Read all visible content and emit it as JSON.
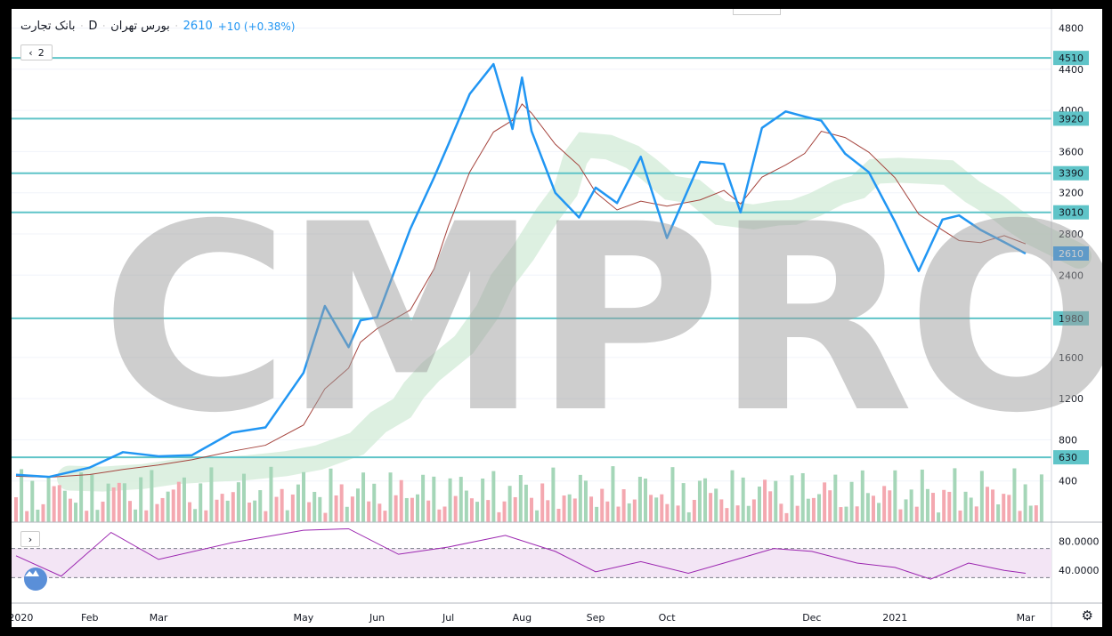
{
  "legend": {
    "symbol": "بانک تجارت",
    "interval": "D",
    "exchange": "بورس تهران",
    "price": "2610",
    "change": "+10 (+0.38%)",
    "collapse_count": "2"
  },
  "watermark": "CMPRO",
  "colors": {
    "price_line": "#2196f3",
    "hline": "#5fc4c8",
    "kijun": "#a5443d",
    "rsi_line": "#9c27b0",
    "rsi_band": "#f3e5f5",
    "vol_up": "#a5d6b8",
    "vol_down": "#f4a8b0",
    "cloud_up": "#cfe9d4",
    "cloud_down": "#f9c9ce"
  },
  "price_axis": [
    "4800",
    "4400",
    "4000",
    "3600",
    "3200",
    "2800",
    "2400",
    "1600",
    "1200",
    "800",
    "400"
  ],
  "rsi_axis": [
    "80.0000",
    "40.0000"
  ],
  "time_axis": [
    "2020",
    "Feb",
    "Mar",
    "May",
    "Jun",
    "Jul",
    "Aug",
    "Sep",
    "Oct",
    "Dec",
    "2021",
    "Mar"
  ],
  "level_labels": [
    "4510",
    "3920",
    "3390",
    "3010",
    "2610",
    "1980",
    "630"
  ],
  "icons": {
    "collapse": "chevron-icon",
    "expand": "chevron-right-icon",
    "settings": "gear-icon",
    "logo": "tradingview-logo-icon"
  },
  "chart_data": {
    "type": "line",
    "title": "",
    "series": [
      {
        "x": [
          "2020-01-01",
          "2020-01-15",
          "2020-02-01",
          "2020-02-15",
          "2020-03-01",
          "2020-03-15",
          "2020-04-01",
          "2020-04-15",
          "2020-05-01",
          "2020-05-10",
          "2020-05-20",
          "2020-05-25",
          "2020-06-01",
          "2020-06-15",
          "2020-06-25",
          "2020-07-01",
          "2020-07-10",
          "2020-07-20",
          "2020-07-28",
          "2020-08-01",
          "2020-08-05",
          "2020-08-15",
          "2020-08-25",
          "2020-09-01",
          "2020-09-10",
          "2020-09-20",
          "2020-10-01",
          "2020-10-15",
          "2020-10-25",
          "2020-11-01",
          "2020-11-10",
          "2020-11-20",
          "2020-11-28",
          "2020-12-05",
          "2020-12-15",
          "2020-12-25",
          "2021-01-05",
          "2021-01-15",
          "2021-01-25",
          "2021-02-01",
          "2021-02-10",
          "2021-02-20",
          "2021-03-01"
        ],
        "values": [
          460,
          440,
          530,
          680,
          640,
          650,
          870,
          920,
          1450,
          2100,
          1700,
          1960,
          1990,
          2850,
          3350,
          3670,
          4160,
          4450,
          3820,
          4320,
          3800,
          3200,
          2960,
          3250,
          3100,
          3550,
          2760,
          3500,
          3480,
          3010,
          3830,
          3990,
          3940,
          3900,
          3580,
          3400,
          2920,
          2440,
          2940,
          2980,
          2840,
          2720,
          2610
        ]
      }
    ],
    "horizontal_levels": [
      4510,
      3920,
      3390,
      3010,
      1980,
      630
    ],
    "last_price": 2610,
    "ylim": [
      0,
      4900
    ],
    "rsi": {
      "x": [
        "2020-01-01",
        "2020-01-20",
        "2020-02-10",
        "2020-03-01",
        "2020-04-01",
        "2020-05-01",
        "2020-05-20",
        "2020-06-10",
        "2020-07-01",
        "2020-07-25",
        "2020-08-15",
        "2020-09-01",
        "2020-09-20",
        "2020-10-10",
        "2020-10-25",
        "2020-11-15",
        "2020-12-01",
        "2020-12-20",
        "2021-01-05",
        "2021-01-20",
        "2021-02-05",
        "2021-02-20",
        "2021-03-01"
      ],
      "values": [
        60,
        32,
        92,
        55,
        78,
        95,
        97,
        62,
        72,
        88,
        66,
        38,
        52,
        36,
        50,
        70,
        66,
        50,
        44,
        28,
        50,
        40,
        36
      ],
      "ylim": [
        0,
        100
      ]
    }
  }
}
